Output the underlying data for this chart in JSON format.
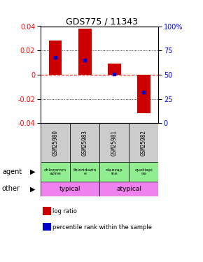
{
  "title": "GDS775 / 11343",
  "samples": [
    "GSM25980",
    "GSM25983",
    "GSM25981",
    "GSM25982"
  ],
  "log_ratios": [
    0.028,
    0.038,
    0.009,
    -0.032
  ],
  "percentile_ranks": [
    68,
    65,
    51,
    32
  ],
  "ylim": [
    -0.04,
    0.04
  ],
  "yticks": [
    -0.04,
    -0.02,
    0.0,
    0.02,
    0.04
  ],
  "agents": [
    "chlorprom\nazine",
    "thioridazin\ne",
    "olanzap\nine",
    "quetiapi\nne"
  ],
  "other_color": "#ee82ee",
  "bar_color": "#cc0000",
  "dot_color": "#0000cc",
  "sample_bg": "#cccccc",
  "agent_bg": "#90ee90",
  "zero_line_color": "#ff0000",
  "title_fontsize": 9
}
